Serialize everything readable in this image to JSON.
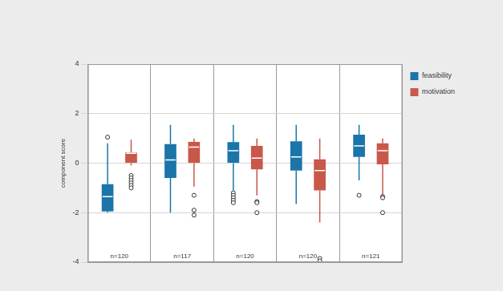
{
  "chart_data": {
    "type": "boxplot",
    "y_label": "component score",
    "categories": [
      null,
      null,
      null,
      null,
      null
    ],
    "ylim": [
      -4,
      4
    ],
    "yticks": [
      -4,
      -2,
      0,
      2,
      4
    ],
    "grid": true,
    "legend": "right",
    "tick_labels": "y",
    "annotations": [
      "n=120",
      "n=117",
      "n=120",
      "n=120",
      "n=121"
    ],
    "series": [
      {
        "name": "feasibility",
        "color": "#1b75a8",
        "whisker_low": [
          -2.0,
          -2.0,
          -1.1,
          -1.65,
          -0.7
        ],
        "q1": [
          -1.95,
          -0.6,
          0.0,
          -0.3,
          0.25
        ],
        "median": [
          -1.35,
          0.13,
          0.5,
          0.25,
          0.7
        ],
        "q3": [
          -0.85,
          0.77,
          0.85,
          0.88,
          1.15
        ],
        "whisker_high": [
          0.8,
          1.55,
          1.55,
          1.55,
          1.55
        ],
        "outliers": [
          [
            1.05
          ],
          [],
          [
            -1.2,
            -1.3,
            -1.4,
            -1.5,
            -1.6
          ],
          [],
          [
            -1.3
          ]
        ]
      },
      {
        "name": "motivation",
        "color": "#c8584a",
        "whisker_low": [
          -0.1,
          -0.95,
          -1.3,
          -2.4,
          -1.3
        ],
        "q1": [
          0.0,
          0.0,
          -0.25,
          -1.1,
          -0.05
        ],
        "median": [
          0.4,
          0.65,
          0.2,
          -0.3,
          0.5
        ],
        "q3": [
          0.43,
          0.86,
          0.7,
          0.15,
          0.8
        ],
        "whisker_high": [
          0.95,
          1.0,
          1.0,
          1.0,
          1.0
        ],
        "outliers": [
          [
            -0.5,
            -0.6,
            -0.7,
            -0.8,
            -0.9,
            -1.0
          ],
          [
            -1.3,
            -1.9,
            -2.1
          ],
          [
            -1.55,
            -1.6,
            -2.0
          ],
          [
            -3.85,
            -3.95
          ],
          [
            -1.35,
            -1.4,
            -2.0
          ]
        ]
      }
    ]
  }
}
